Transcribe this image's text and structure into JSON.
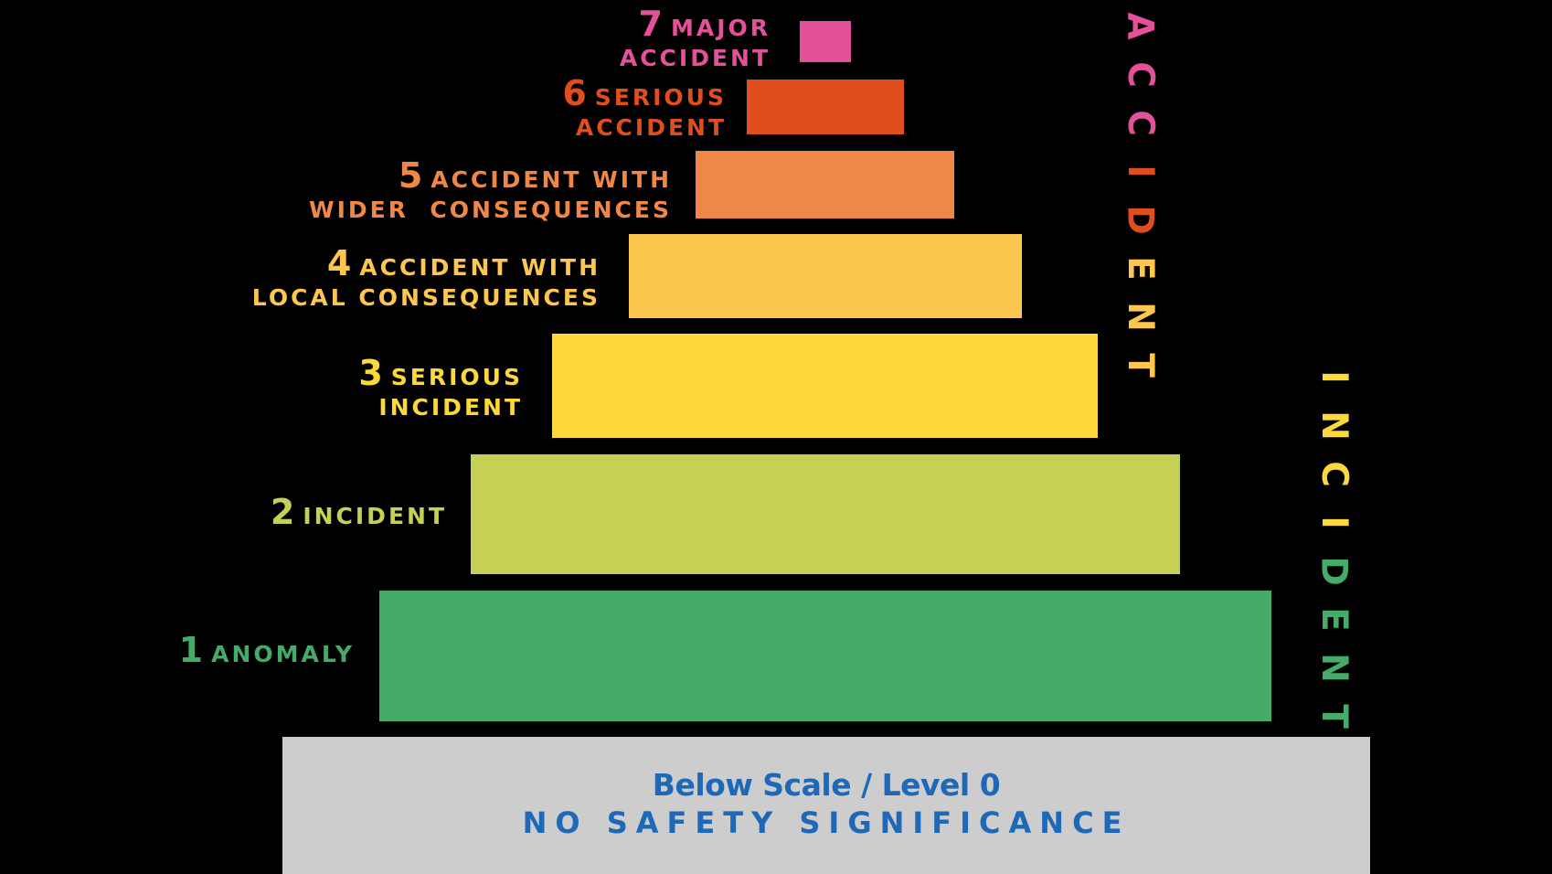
{
  "levels": [
    {
      "number": "7",
      "lines": [
        "MAJOR",
        "ACCIDENT"
      ],
      "color": "#e5509a"
    },
    {
      "number": "6",
      "lines": [
        "SERIOUS",
        "ACCIDENT"
      ],
      "color": "#e04e1d"
    },
    {
      "number": "5",
      "lines": [
        "ACCIDENT WITH",
        "WIDER  CONSEQUENCES"
      ],
      "color": "#ef8846"
    },
    {
      "number": "4",
      "lines": [
        "ACCIDENT WITH",
        "LOCAL CONSEQUENCES"
      ],
      "color": "#fdc64f"
    },
    {
      "number": "3",
      "lines": [
        "SERIOUS",
        "INCIDENT"
      ],
      "color": "#fdd83a"
    },
    {
      "number": "2",
      "lines": [
        "INCIDENT"
      ],
      "color": "#c6d052"
    },
    {
      "number": "1",
      "lines": [
        "ANOMALY"
      ],
      "color": "#46aa6a"
    }
  ],
  "accident_axis": {
    "word": "ACCIDENT",
    "colors": [
      "#fdc64f",
      "#e04e1d",
      "#e5509a"
    ]
  },
  "incident_axis": {
    "word": "INCIDENT",
    "colors": [
      "#46aa6a",
      "#fdd83a"
    ]
  },
  "base": {
    "title": "Below Scale / Level 0",
    "subtitle": "NO SAFETY SIGNIFICANCE",
    "color": "#cdcdcd",
    "text_color": "#1d69b7"
  }
}
